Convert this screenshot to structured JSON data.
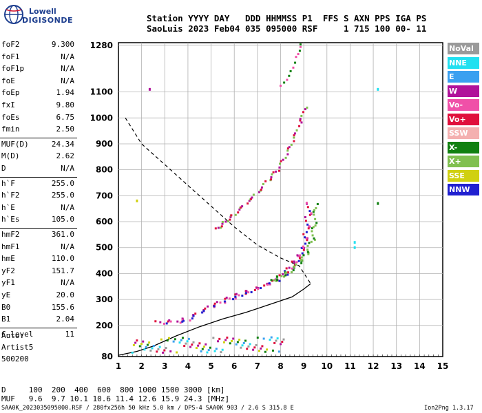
{
  "logo": {
    "line1": "Lowell",
    "line2": "DIGISONDE"
  },
  "header": {
    "line1": "Station YYYY DAY   DDD HHMMSS P1  FFS S AXN PPS IGA PS",
    "line2": "SaoLuis 2023 Feb04 035 095000 RSF     1 715 100 00- 11"
  },
  "params": [
    {
      "name": "foF2",
      "value": "9.300"
    },
    {
      "name": "foF1",
      "value": "N/A"
    },
    {
      "name": "foF1p",
      "value": "N/A"
    },
    {
      "name": "foE",
      "value": "N/A"
    },
    {
      "name": "foEp",
      "value": "1.94"
    },
    {
      "name": "fxI",
      "value": "9.80"
    },
    {
      "name": "foEs",
      "value": "6.75"
    },
    {
      "name": "fmin",
      "value": "2.50"
    },
    {
      "name": "MUF(D)",
      "value": "24.34"
    },
    {
      "name": "M(D)",
      "value": "2.62"
    },
    {
      "name": "D",
      "value": "N/A"
    },
    {
      "name": "h`F",
      "value": "255.0"
    },
    {
      "name": "h`F2",
      "value": "255.0"
    },
    {
      "name": "h`E",
      "value": "N/A"
    },
    {
      "name": "h`Es",
      "value": "105.0"
    },
    {
      "name": "hmF2",
      "value": "361.0"
    },
    {
      "name": "hmF1",
      "value": "N/A"
    },
    {
      "name": "hmE",
      "value": "110.0"
    },
    {
      "name": "yF2",
      "value": "151.7"
    },
    {
      "name": "yF1",
      "value": "N/A"
    },
    {
      "name": "yE",
      "value": "20.0"
    },
    {
      "name": "B0",
      "value": "155.6"
    },
    {
      "name": "B1",
      "value": "2.04"
    },
    {
      "name": "C-level",
      "value": "11"
    }
  ],
  "auto": {
    "line1": "Auto:",
    "line2": "Artist5",
    "line3": "500200"
  },
  "legend": [
    {
      "label": "NoVal",
      "color": "#9a9a9a"
    },
    {
      "label": "NNE",
      "color": "#22e0f0"
    },
    {
      "label": "E",
      "color": "#3aa0f0"
    },
    {
      "label": "W",
      "color": "#b0129a"
    },
    {
      "label": "Vo-",
      "color": "#f050a8"
    },
    {
      "label": "Vo+",
      "color": "#e0103c"
    },
    {
      "label": "SSW",
      "color": "#f4b0b0"
    },
    {
      "label": "X-",
      "color": "#108010"
    },
    {
      "label": "X+",
      "color": "#80c050"
    },
    {
      "label": "SSE",
      "color": "#d0d010"
    },
    {
      "label": "NNW",
      "color": "#2020d0"
    }
  ],
  "muf_table": {
    "row1": "D     100  200  400  600  800 1000 1500 3000 [km]",
    "row2": "MUF   9.6  9.7 10.1 10.6 11.4 12.6 15.9 24.3 [MHz]"
  },
  "footer": {
    "left": "SAA0K_2023035095000.RSF / 280fx256h 50 kHz 5.0 km / DPS-4 SAA0K 903 / 2.6 S 315.8 E",
    "right": "Ion2Png 1.3.17"
  },
  "chart_data": {
    "type": "scatter",
    "xlim": [
      1,
      15
    ],
    "ylim": [
      80,
      1290
    ],
    "x_ticks": [
      1,
      2,
      3,
      4,
      5,
      6,
      7,
      8,
      9,
      10,
      11,
      12,
      13,
      14,
      15
    ],
    "y_ticks": [
      80,
      200,
      300,
      400,
      500,
      600,
      700,
      800,
      900,
      1000,
      1100,
      1280
    ],
    "y_tick_labels": [
      "80",
      "200",
      "300",
      "400",
      "500",
      "600",
      "700",
      "800",
      "900",
      "1000",
      "1100",
      "1280"
    ],
    "grid": true,
    "legend_position": "right",
    "series": [
      {
        "values_o_trace": [
          [
            2.6,
            210
          ],
          [
            3.5,
            215
          ],
          [
            4.0,
            225
          ],
          [
            4.5,
            250
          ],
          [
            5.0,
            270
          ],
          [
            5.5,
            290
          ],
          [
            6.0,
            310
          ],
          [
            6.5,
            325
          ],
          [
            7.0,
            340
          ],
          [
            7.5,
            360
          ],
          [
            7.9,
            380
          ],
          [
            8.3,
            410
          ],
          [
            8.6,
            440
          ],
          [
            8.8,
            470
          ],
          [
            9.0,
            510
          ],
          [
            9.1,
            560
          ],
          [
            9.2,
            620
          ],
          [
            9.25,
            680
          ]
        ]
      },
      {
        "values_x_trace": [
          [
            7.6,
            370
          ],
          [
            8.0,
            390
          ],
          [
            8.4,
            410
          ],
          [
            8.8,
            440
          ],
          [
            9.1,
            470
          ],
          [
            9.4,
            530
          ],
          [
            9.5,
            600
          ],
          [
            9.55,
            680
          ]
        ]
      },
      {
        "values_2hop": [
          [
            5.2,
            570
          ],
          [
            5.6,
            600
          ],
          [
            6.0,
            630
          ],
          [
            6.5,
            670
          ],
          [
            7.0,
            710
          ],
          [
            7.5,
            760
          ],
          [
            7.9,
            800
          ],
          [
            8.3,
            860
          ],
          [
            8.6,
            920
          ],
          [
            8.9,
            990
          ],
          [
            9.1,
            1050
          ]
        ]
      },
      {
        "values_3hop": [
          [
            8.0,
            1120
          ],
          [
            8.4,
            1180
          ],
          [
            8.7,
            1250
          ],
          [
            8.9,
            1290
          ]
        ]
      },
      {
        "values_profile": [
          [
            1.0,
            85
          ],
          [
            1.8,
            100
          ],
          [
            2.5,
            120
          ],
          [
            3.5,
            160
          ],
          [
            4.5,
            195
          ],
          [
            5.5,
            225
          ],
          [
            6.5,
            250
          ],
          [
            7.5,
            280
          ],
          [
            8.5,
            310
          ],
          [
            9.0,
            340
          ],
          [
            9.3,
            361
          ]
        ]
      },
      {
        "values_dashed": [
          [
            1.3,
            1000
          ],
          [
            2.0,
            900
          ],
          [
            3.0,
            820
          ],
          [
            4.0,
            740
          ],
          [
            5.0,
            660
          ],
          [
            6.0,
            580
          ],
          [
            7.0,
            510
          ],
          [
            8.0,
            460
          ],
          [
            8.8,
            430
          ],
          [
            9.3,
            361
          ]
        ]
      }
    ]
  }
}
